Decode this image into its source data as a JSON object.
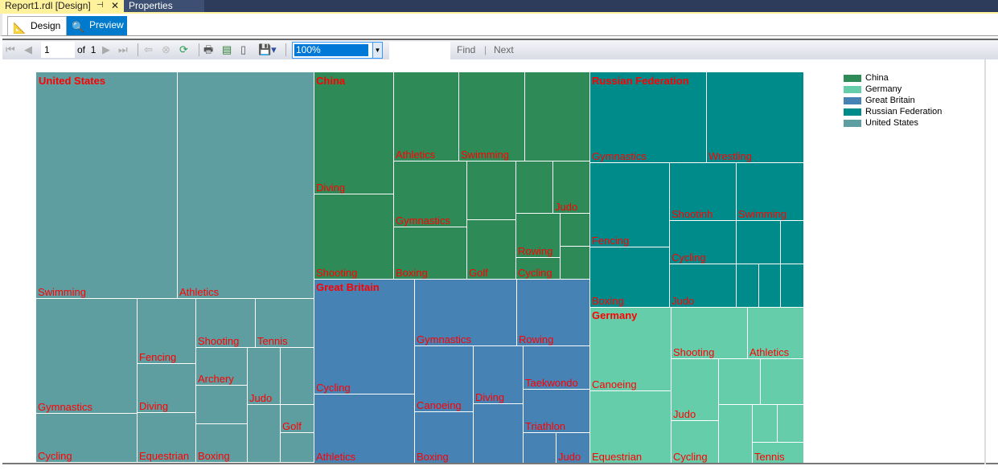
{
  "window": {
    "doc_tab": "Report1.rdl [Design]",
    "properties_tab": "Properties"
  },
  "view_tabs": {
    "design": "Design",
    "preview": "Preview"
  },
  "toolbar": {
    "page": "1",
    "of_label": "of",
    "total_pages": "1",
    "zoom": "100%",
    "find_value": "",
    "find": "Find",
    "separator": "|",
    "next": "Next"
  },
  "treemap": {
    "label_color": "#ff0000",
    "groups": [
      {
        "name": "United States",
        "color": "#5f9ea0",
        "cells": [
          "Swimming",
          "Athletics",
          "Gymnastics",
          "Cycling",
          "Fencing",
          "Diving",
          "Equestrian",
          "Shooting",
          "Tennis",
          "Archery",
          "",
          "Boxing",
          "Judo",
          "",
          "",
          "Golf",
          ""
        ]
      },
      {
        "name": "China",
        "color": "#2e8b57",
        "cells": [
          "Diving",
          "Shooting",
          "Athletics",
          "Swimming",
          "",
          "Gymnastics",
          "Boxing",
          "",
          "Golf",
          "",
          "Judo",
          "Rowing",
          "Cycling",
          "",
          ""
        ]
      },
      {
        "name": "Russian Federation",
        "color": "#008b8b",
        "cells": [
          "Gymnastics",
          "Wrestling",
          "Fencing",
          "Boxing",
          "Shootinh",
          "Swimming",
          "Cycling",
          "",
          "",
          "Judo",
          "",
          "",
          ""
        ]
      },
      {
        "name": "Great Britain",
        "color": "#4682b4",
        "cells": [
          "Cycling",
          "Athletics",
          "Gymnastics",
          "Rowing",
          "Canoeing",
          "Boxing",
          "Diving",
          "",
          "Taekwondo",
          "Triathlon",
          "",
          "Judo"
        ]
      },
      {
        "name": "Germany",
        "color": "#66cdaa",
        "cells": [
          "Canoeing",
          "Equestrian",
          "Shooting",
          "Athletics",
          "Judo",
          "Cycling",
          "",
          "",
          "",
          "",
          "",
          "Tennis"
        ]
      }
    ]
  },
  "legend": [
    {
      "label": "China",
      "color": "#2e8b57"
    },
    {
      "label": "Germany",
      "color": "#66cdaa"
    },
    {
      "label": "Great Britain",
      "color": "#4682b4"
    },
    {
      "label": "Russian Federation",
      "color": "#008b8b"
    },
    {
      "label": "United States",
      "color": "#5f9ea0"
    }
  ]
}
